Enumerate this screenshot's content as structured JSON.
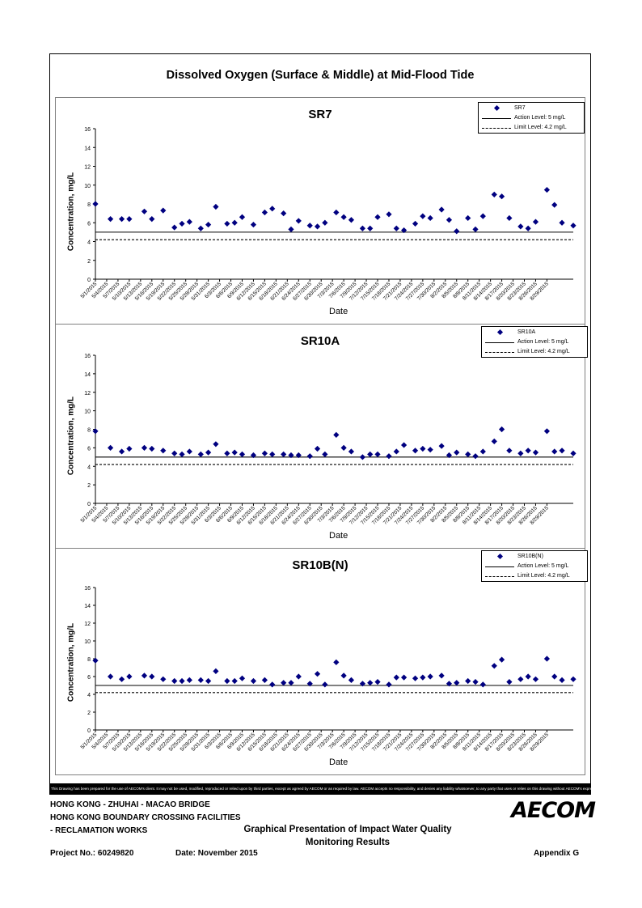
{
  "title": "Dissolved Oxygen (Surface & Middle) at Mid-Flood Tide",
  "dates": [
    "5/1/2015",
    "5/4/2015",
    "5/7/2015",
    "5/10/2015",
    "5/13/2015",
    "5/16/2015",
    "5/19/2015",
    "5/22/2015",
    "5/25/2015",
    "5/28/2015",
    "5/31/2015",
    "6/3/2015",
    "6/6/2015",
    "6/9/2015",
    "6/12/2015",
    "6/15/2015",
    "6/18/2015",
    "6/21/2015",
    "6/24/2015",
    "6/27/2015",
    "6/30/2015",
    "7/3/2015",
    "7/6/2015",
    "7/9/2015",
    "7/12/2015",
    "7/15/2015",
    "7/18/2015",
    "7/21/2015",
    "7/24/2015",
    "7/27/2015",
    "7/30/2015",
    "8/2/2015",
    "8/5/2015",
    "8/8/2015",
    "8/11/2015",
    "8/14/2015",
    "8/17/2015",
    "8/20/2015",
    "8/23/2015",
    "8/26/2015",
    "8/29/2015"
  ],
  "chart_data": [
    {
      "type": "scatter",
      "title": "SR7",
      "xlabel": "Date",
      "ylabel": "Concentration, mg/L",
      "ylim": [
        0,
        16
      ],
      "yticks": [
        0,
        2,
        4,
        6,
        8,
        10,
        12,
        14,
        16
      ],
      "xlim": [
        "5/1/2015",
        "8/31/2015"
      ],
      "legend_position": "top-right",
      "grid": false,
      "series": [
        {
          "name": "SR7",
          "marker": "diamond",
          "color": "#000080",
          "points": [
            [
              "5/1/2015",
              8.0
            ],
            [
              "5/5/2015",
              6.4
            ],
            [
              "5/8/2015",
              6.4
            ],
            [
              "5/10/2015",
              6.4
            ],
            [
              "5/14/2015",
              7.2
            ],
            [
              "5/16/2015",
              6.4
            ],
            [
              "5/19/2015",
              7.3
            ],
            [
              "5/22/2015",
              5.5
            ],
            [
              "5/24/2015",
              5.9
            ],
            [
              "5/26/2015",
              6.1
            ],
            [
              "5/29/2015",
              5.4
            ],
            [
              "5/31/2015",
              5.8
            ],
            [
              "6/2/2015",
              7.7
            ],
            [
              "6/5/2015",
              5.9
            ],
            [
              "6/7/2015",
              6.0
            ],
            [
              "6/9/2015",
              6.6
            ],
            [
              "6/12/2015",
              5.8
            ],
            [
              "6/15/2015",
              7.1
            ],
            [
              "6/17/2015",
              7.5
            ],
            [
              "6/20/2015",
              7.0
            ],
            [
              "6/22/2015",
              5.3
            ],
            [
              "6/24/2015",
              6.2
            ],
            [
              "6/27/2015",
              5.7
            ],
            [
              "6/29/2015",
              5.6
            ],
            [
              "7/1/2015",
              6.0
            ],
            [
              "7/4/2015",
              7.1
            ],
            [
              "7/6/2015",
              6.6
            ],
            [
              "7/8/2015",
              6.3
            ],
            [
              "7/11/2015",
              5.4
            ],
            [
              "7/13/2015",
              5.4
            ],
            [
              "7/15/2015",
              6.6
            ],
            [
              "7/18/2015",
              6.9
            ],
            [
              "7/20/2015",
              5.4
            ],
            [
              "7/22/2015",
              5.2
            ],
            [
              "7/25/2015",
              5.9
            ],
            [
              "7/27/2015",
              6.7
            ],
            [
              "7/29/2015",
              6.5
            ],
            [
              "8/1/2015",
              7.4
            ],
            [
              "8/3/2015",
              6.3
            ],
            [
              "8/5/2015",
              5.1
            ],
            [
              "8/8/2015",
              6.5
            ],
            [
              "8/10/2015",
              5.3
            ],
            [
              "8/12/2015",
              6.7
            ],
            [
              "8/15/2015",
              9.0
            ],
            [
              "8/17/2015",
              8.8
            ],
            [
              "8/19/2015",
              6.5
            ],
            [
              "8/22/2015",
              5.6
            ],
            [
              "8/24/2015",
              5.4
            ],
            [
              "8/26/2015",
              6.1
            ],
            [
              "8/29/2015",
              9.5
            ],
            [
              "8/31/2015",
              7.9
            ],
            [
              "9/2/2015",
              6.0
            ],
            [
              "9/5/2015",
              5.7
            ]
          ]
        },
        {
          "name": "Action Level: 5 mg/L",
          "type": "line",
          "style": "solid",
          "color": "#000000",
          "value": 5
        },
        {
          "name": "Limit Level: 4.2 mg/L",
          "type": "line",
          "style": "dashed",
          "color": "#000000",
          "value": 4.2
        }
      ]
    },
    {
      "type": "scatter",
      "title": "SR10A",
      "xlabel": "Date",
      "ylabel": "Concentration, mg/L",
      "ylim": [
        0,
        16
      ],
      "yticks": [
        0,
        2,
        4,
        6,
        8,
        10,
        12,
        14,
        16
      ],
      "legend_position": "top-right",
      "grid": false,
      "series": [
        {
          "name": "SR10A",
          "marker": "diamond",
          "color": "#000080",
          "points": [
            [
              "5/1/2015",
              7.8
            ],
            [
              "5/5/2015",
              6.0
            ],
            [
              "5/8/2015",
              5.6
            ],
            [
              "5/10/2015",
              5.9
            ],
            [
              "5/14/2015",
              6.0
            ],
            [
              "5/16/2015",
              5.9
            ],
            [
              "5/19/2015",
              5.7
            ],
            [
              "5/22/2015",
              5.4
            ],
            [
              "5/24/2015",
              5.3
            ],
            [
              "5/26/2015",
              5.6
            ],
            [
              "5/29/2015",
              5.3
            ],
            [
              "5/31/2015",
              5.5
            ],
            [
              "6/2/2015",
              6.4
            ],
            [
              "6/5/2015",
              5.4
            ],
            [
              "6/7/2015",
              5.5
            ],
            [
              "6/9/2015",
              5.3
            ],
            [
              "6/12/2015",
              5.2
            ],
            [
              "6/15/2015",
              5.4
            ],
            [
              "6/17/2015",
              5.3
            ],
            [
              "6/20/2015",
              5.3
            ],
            [
              "6/22/2015",
              5.2
            ],
            [
              "6/24/2015",
              5.2
            ],
            [
              "6/27/2015",
              5.1
            ],
            [
              "6/29/2015",
              5.9
            ],
            [
              "7/1/2015",
              5.3
            ],
            [
              "7/4/2015",
              7.4
            ],
            [
              "7/6/2015",
              6.0
            ],
            [
              "7/8/2015",
              5.6
            ],
            [
              "7/11/2015",
              5.0
            ],
            [
              "7/13/2015",
              5.3
            ],
            [
              "7/15/2015",
              5.3
            ],
            [
              "7/18/2015",
              5.1
            ],
            [
              "7/20/2015",
              5.6
            ],
            [
              "7/22/2015",
              6.3
            ],
            [
              "7/25/2015",
              5.7
            ],
            [
              "7/27/2015",
              5.9
            ],
            [
              "7/29/2015",
              5.8
            ],
            [
              "8/1/2015",
              6.2
            ],
            [
              "8/3/2015",
              5.2
            ],
            [
              "8/5/2015",
              5.5
            ],
            [
              "8/8/2015",
              5.3
            ],
            [
              "8/10/2015",
              5.1
            ],
            [
              "8/12/2015",
              5.6
            ],
            [
              "8/15/2015",
              6.7
            ],
            [
              "8/17/2015",
              8.0
            ],
            [
              "8/19/2015",
              5.7
            ],
            [
              "8/22/2015",
              5.4
            ],
            [
              "8/24/2015",
              5.7
            ],
            [
              "8/26/2015",
              5.5
            ],
            [
              "8/29/2015",
              7.8
            ],
            [
              "8/31/2015",
              5.6
            ],
            [
              "9/2/2015",
              5.7
            ],
            [
              "9/5/2015",
              5.4
            ]
          ]
        },
        {
          "name": "Action Level: 5 mg/L",
          "type": "line",
          "style": "solid",
          "color": "#000000",
          "value": 5
        },
        {
          "name": "Limit Level: 4.2 mg/L",
          "type": "line",
          "style": "dashed",
          "color": "#000000",
          "value": 4.2
        }
      ]
    },
    {
      "type": "scatter",
      "title": "SR10B(N)",
      "xlabel": "Date",
      "ylabel": "Concentration, mg/L",
      "ylim": [
        0,
        16
      ],
      "yticks": [
        0,
        2,
        4,
        6,
        8,
        10,
        12,
        14,
        16
      ],
      "legend_position": "top-right",
      "grid": false,
      "series": [
        {
          "name": "SR10B(N)",
          "marker": "diamond",
          "color": "#000080",
          "points": [
            [
              "5/1/2015",
              7.8
            ],
            [
              "5/5/2015",
              6.0
            ],
            [
              "5/8/2015",
              5.7
            ],
            [
              "5/10/2015",
              6.0
            ],
            [
              "5/14/2015",
              6.1
            ],
            [
              "5/16/2015",
              6.0
            ],
            [
              "5/19/2015",
              5.7
            ],
            [
              "5/22/2015",
              5.5
            ],
            [
              "5/24/2015",
              5.5
            ],
            [
              "5/26/2015",
              5.6
            ],
            [
              "5/29/2015",
              5.6
            ],
            [
              "5/31/2015",
              5.5
            ],
            [
              "6/2/2015",
              6.6
            ],
            [
              "6/5/2015",
              5.5
            ],
            [
              "6/7/2015",
              5.5
            ],
            [
              "6/9/2015",
              5.8
            ],
            [
              "6/12/2015",
              5.5
            ],
            [
              "6/15/2015",
              5.6
            ],
            [
              "6/17/2015",
              5.1
            ],
            [
              "6/20/2015",
              5.3
            ],
            [
              "6/22/2015",
              5.3
            ],
            [
              "6/24/2015",
              6.0
            ],
            [
              "6/27/2015",
              5.2
            ],
            [
              "6/29/2015",
              6.3
            ],
            [
              "7/1/2015",
              5.1
            ],
            [
              "7/4/2015",
              7.6
            ],
            [
              "7/6/2015",
              6.1
            ],
            [
              "7/8/2015",
              5.6
            ],
            [
              "7/11/2015",
              5.2
            ],
            [
              "7/13/2015",
              5.3
            ],
            [
              "7/15/2015",
              5.4
            ],
            [
              "7/18/2015",
              5.1
            ],
            [
              "7/20/2015",
              5.9
            ],
            [
              "7/22/2015",
              5.9
            ],
            [
              "7/25/2015",
              5.8
            ],
            [
              "7/27/2015",
              5.9
            ],
            [
              "7/29/2015",
              6.0
            ],
            [
              "8/1/2015",
              6.1
            ],
            [
              "8/3/2015",
              5.2
            ],
            [
              "8/5/2015",
              5.3
            ],
            [
              "8/8/2015",
              5.5
            ],
            [
              "8/10/2015",
              5.4
            ],
            [
              "8/12/2015",
              5.1
            ],
            [
              "8/15/2015",
              7.2
            ],
            [
              "8/17/2015",
              7.9
            ],
            [
              "8/19/2015",
              5.4
            ],
            [
              "8/22/2015",
              5.7
            ],
            [
              "8/24/2015",
              6.0
            ],
            [
              "8/26/2015",
              5.7
            ],
            [
              "8/29/2015",
              8.0
            ],
            [
              "8/31/2015",
              6.0
            ],
            [
              "9/2/2015",
              5.6
            ],
            [
              "9/5/2015",
              5.7
            ]
          ]
        },
        {
          "name": "Action Level: 5 mg/L",
          "type": "line",
          "style": "solid",
          "color": "#000000",
          "value": 5
        },
        {
          "name": "Limit Level: 4.2 mg/L",
          "type": "line",
          "style": "dashed",
          "color": "#000000",
          "value": 4.2
        }
      ]
    }
  ],
  "legend": {
    "action_label": "Action Level: 5 mg/L",
    "limit_label": "Limit Level: 4.2 mg/L"
  },
  "footer": {
    "disclaimer": "This Drawing has been prepared for the use of AECOM's client. It may not be used, modified, reproduced or relied upon by third parties, except as agreed by AECOM or as required by law. AECOM accepts no responsibility, and denies any liability whatsoever, to any party that uses or relies on this drawing without AECOM's express written consent.",
    "project_line1": "HONG KONG - ZHUHAI - MACAO BRIDGE",
    "project_line2": "HONG KONG BOUNDARY CROSSING FACILITIES",
    "project_line3": "- RECLAMATION WORKS",
    "doc_title_line1": "Graphical Presentation of Impact Water Quality",
    "doc_title_line2": "Monitoring Results",
    "project_no": "Project No.: 60249820",
    "date": "Date: November 2015",
    "appendix": "Appendix G",
    "logo": "AECOM"
  }
}
